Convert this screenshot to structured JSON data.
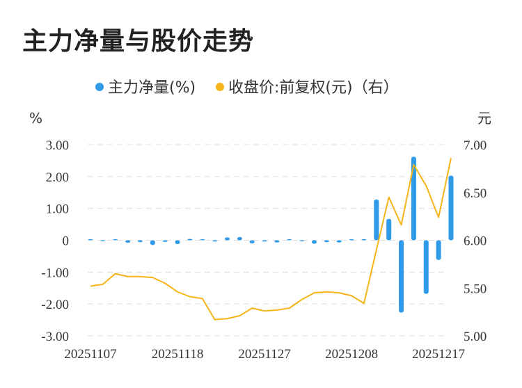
{
  "title": "主力净量与股价走势",
  "chart_data": {
    "type": "bar+line",
    "legend": [
      {
        "label": "主力净量(%)",
        "color": "#2f9be8",
        "marker": "dot"
      },
      {
        "label": "收盘价:前复权(元)（右）",
        "color": "#f5b418",
        "marker": "dot"
      }
    ],
    "left_unit": "%",
    "right_unit": "元",
    "y_left": {
      "min": -3,
      "max": 3,
      "ticks": [
        "3.00",
        "2.00",
        "1.00",
        "0",
        "-1.00",
        "-2.00",
        "-3.00"
      ]
    },
    "y_right": {
      "min": 5.0,
      "max": 7.0,
      "ticks": [
        "7.00",
        "6.50",
        "6.00",
        "5.50",
        "5.00"
      ]
    },
    "x_ticks": [
      {
        "index": 0,
        "label": "20251107"
      },
      {
        "index": 7,
        "label": "20251118"
      },
      {
        "index": 14,
        "label": "20251127"
      },
      {
        "index": 21,
        "label": "20251208"
      },
      {
        "index": 28,
        "label": "20251217"
      }
    ],
    "series": [
      {
        "name": "主力净量(%)",
        "type": "bar",
        "values": [
          0.02,
          -0.03,
          0.01,
          -0.08,
          -0.06,
          -0.15,
          -0.05,
          -0.12,
          0.04,
          0.02,
          -0.04,
          0.09,
          0.1,
          -0.1,
          -0.04,
          -0.07,
          0.01,
          -0.02,
          -0.11,
          -0.06,
          -0.07,
          0.0,
          0.0,
          1.28,
          0.67,
          -2.27,
          2.62,
          -1.68,
          -0.62,
          2.03
        ]
      },
      {
        "name": "收盘价:前复权(元)（右）",
        "type": "line",
        "values": [
          5.52,
          5.54,
          5.65,
          5.62,
          5.62,
          5.61,
          5.55,
          5.46,
          5.41,
          5.39,
          5.17,
          5.18,
          5.21,
          5.29,
          5.26,
          5.27,
          5.29,
          5.38,
          5.45,
          5.46,
          5.45,
          5.42,
          5.34,
          5.9,
          6.45,
          6.16,
          6.79,
          6.57,
          6.24,
          6.86
        ]
      }
    ]
  }
}
